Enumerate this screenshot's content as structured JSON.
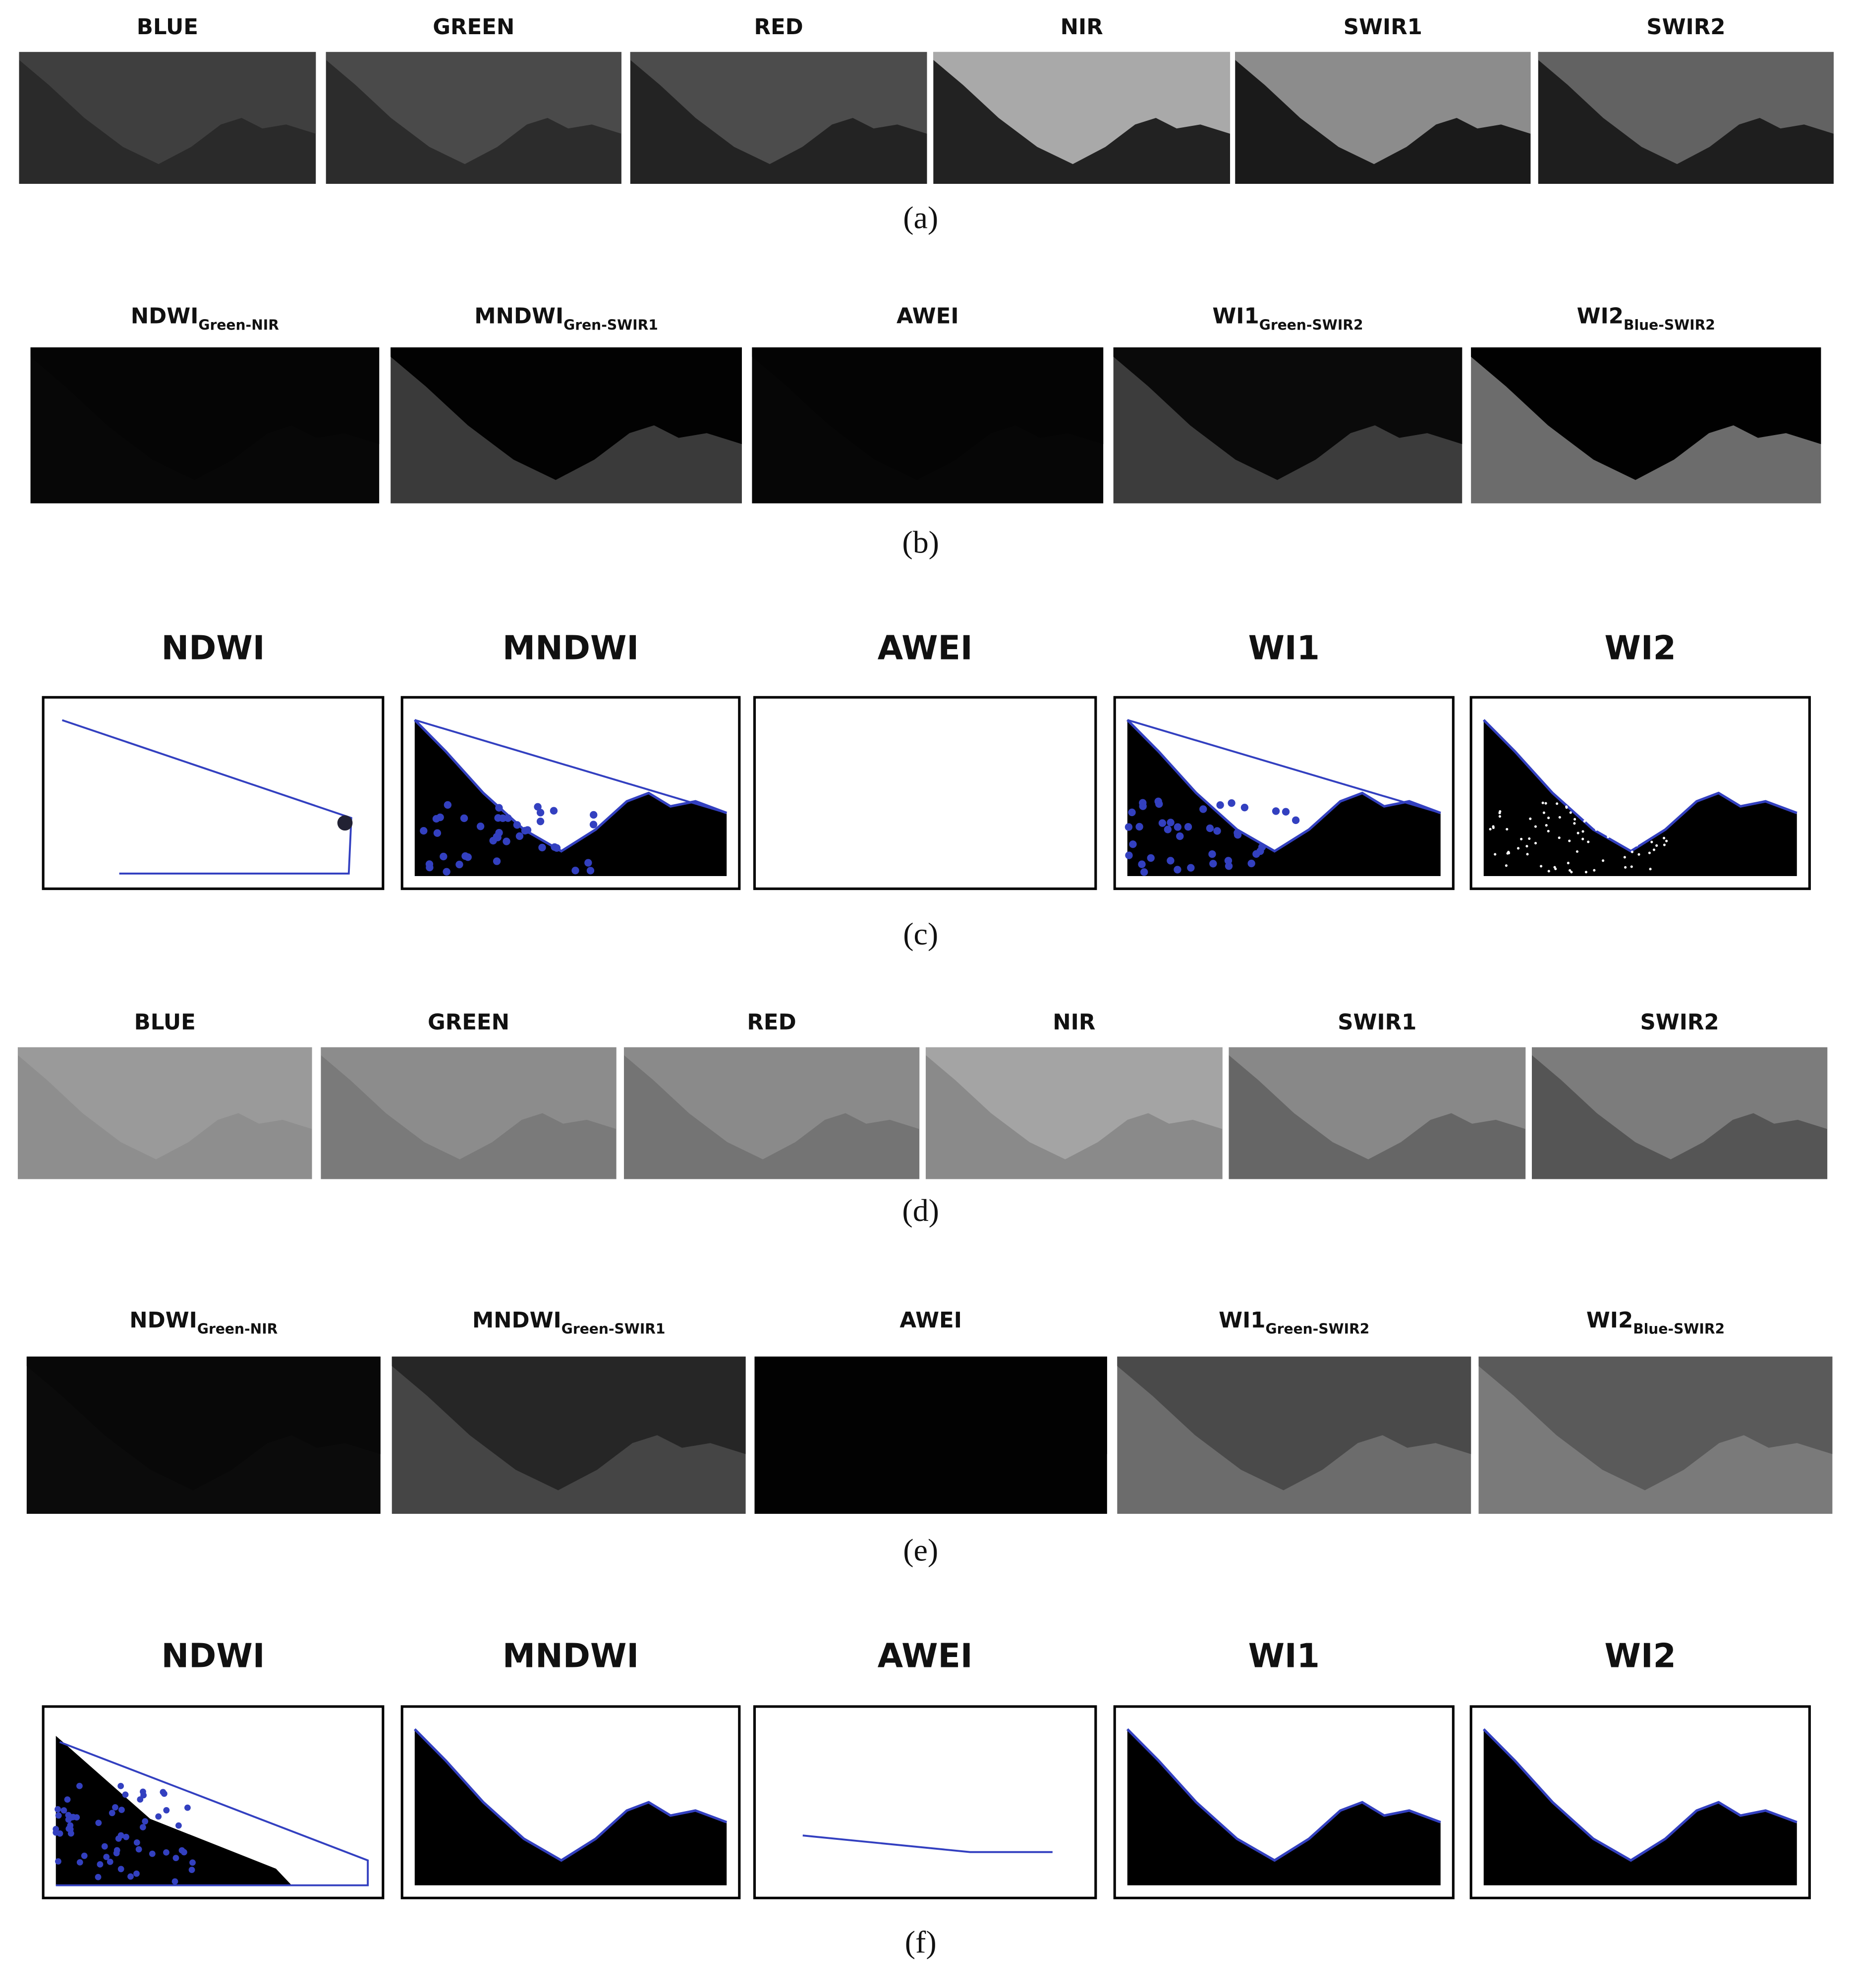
{
  "panels": [
    {
      "caption": "(a)",
      "images": [
        {
          "title": "BLUE"
        },
        {
          "title": "GREEN"
        },
        {
          "title": "RED"
        },
        {
          "title": "NIR"
        },
        {
          "title": "SWIR1"
        },
        {
          "title": "SWIR2"
        }
      ]
    },
    {
      "caption": "(b)",
      "images": [
        {
          "title": "NDWI",
          "subscript": "Green-NIR"
        },
        {
          "title": "MNDWI",
          "subscript": "Gren-SWIR1"
        },
        {
          "title": "AWEI"
        },
        {
          "title": "WI1",
          "subscript": "Green-SWIR2"
        },
        {
          "title": "WI2",
          "subscript": "Blue-SWIR2"
        }
      ]
    },
    {
      "caption": "(c)",
      "images": [
        {
          "title": "NDWI"
        },
        {
          "title": "MNDWI"
        },
        {
          "title": "AWEI"
        },
        {
          "title": "WI1"
        },
        {
          "title": "WI2"
        }
      ]
    },
    {
      "caption": "(d)",
      "images": [
        {
          "title": "BLUE"
        },
        {
          "title": "GREEN"
        },
        {
          "title": "RED"
        },
        {
          "title": "NIR"
        },
        {
          "title": "SWIR1"
        },
        {
          "title": "SWIR2"
        }
      ]
    },
    {
      "caption": "(e)",
      "images": [
        {
          "title": "NDWI",
          "subscript": "Green-NIR"
        },
        {
          "title": "MNDWI",
          "subscript": "Green-SWIR1"
        },
        {
          "title": "AWEI"
        },
        {
          "title": "WI1",
          "subscript": "Green-SWIR2"
        },
        {
          "title": "WI2",
          "subscript": "Blue-SWIR2"
        }
      ]
    },
    {
      "caption": "(f)",
      "images": [
        {
          "title": "NDWI"
        },
        {
          "title": "MNDWI"
        },
        {
          "title": "AWEI"
        },
        {
          "title": "WI1"
        },
        {
          "title": "WI2"
        }
      ]
    }
  ]
}
